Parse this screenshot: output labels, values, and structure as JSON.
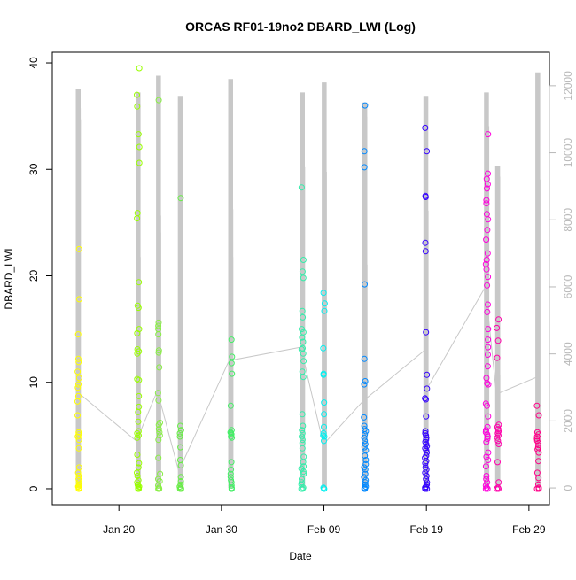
{
  "chart_data": {
    "type": "scatter",
    "title": "ORCAS RF01-19no2 DBARD_LWI (Log)",
    "xlabel": "Date",
    "ylabel": "DBARD_LWI",
    "xlim": [
      "2016-01-13T12:00",
      "2016-03-02T00:00"
    ],
    "ylim": [
      -1.5,
      41
    ],
    "y2lim": [
      -500,
      13000
    ],
    "x_ticks": [
      {
        "value": "2016-01-20",
        "label": "Jan 20"
      },
      {
        "value": "2016-01-30",
        "label": "Jan 30"
      },
      {
        "value": "2016-02-09",
        "label": "Feb 09"
      },
      {
        "value": "2016-02-19",
        "label": "Feb 19"
      },
      {
        "value": "2016-02-29",
        "label": "Feb 29"
      }
    ],
    "y_ticks": [
      0,
      10,
      20,
      30,
      40
    ],
    "y2_ticks": [
      0,
      2000,
      4000,
      6000,
      8000,
      10000,
      12000
    ],
    "y2_color": "#b8b8b8",
    "grid": false,
    "background_series": {
      "color": "#c8c8c8",
      "flights": [
        {
          "start": "2016-01-15T20:00",
          "end": "2016-01-16T06:00",
          "max": 11900
        },
        {
          "start": "2016-01-21T16:00",
          "end": "2016-01-22T02:00",
          "max": 11800
        },
        {
          "start": "2016-01-23T16:00",
          "end": "2016-01-24T02:00",
          "max": 12300
        },
        {
          "start": "2016-01-25T19:00",
          "end": "2016-01-26T05:00",
          "max": 11700
        },
        {
          "start": "2016-01-30T17:00",
          "end": "2016-01-31T03:00",
          "max": 12200
        },
        {
          "start": "2016-02-06T17:00",
          "end": "2016-02-07T03:00",
          "max": 11800
        },
        {
          "start": "2016-02-08T20:00",
          "end": "2016-02-09T06:00",
          "max": 12100
        },
        {
          "start": "2016-02-12T19:00",
          "end": "2016-02-13T05:00",
          "max": 11500
        },
        {
          "start": "2016-02-18T18:00",
          "end": "2016-02-19T04:00",
          "max": 11700
        },
        {
          "start": "2016-02-24T16:00",
          "end": "2016-02-25T02:00",
          "max": 11800
        },
        {
          "start": "2016-02-25T18:00",
          "end": "2016-02-26T04:00",
          "max": 9600
        },
        {
          "start": "2016-02-29T16:00",
          "end": "2016-03-01T02:00",
          "max": 12400
        }
      ],
      "connectors": [
        [
          "2016-01-16T05:00",
          2800
        ],
        [
          "2016-01-21T17:00",
          1400
        ],
        [
          "2016-01-23T18:00",
          2900
        ],
        [
          "2016-01-25T20:00",
          500
        ],
        [
          "2016-01-30T18:00",
          3800
        ],
        [
          "2016-02-06T18:00",
          4200
        ],
        [
          "2016-02-08T21:00",
          1400
        ],
        [
          "2016-02-08T22:00",
          3200
        ],
        [
          "2016-02-08T23:00",
          1300
        ],
        [
          "2016-02-12T20:00",
          2600
        ],
        [
          "2016-02-18T19:00",
          4100
        ],
        [
          "2016-02-19T03:00",
          3000
        ],
        [
          "2016-02-24T18:00",
          6000
        ],
        [
          "2016-02-25T20:00",
          2800
        ],
        [
          "2016-02-29T17:00",
          3300
        ]
      ]
    },
    "series": [
      {
        "color": "#ffff00",
        "t": "2016-01-16T01:00",
        "spread": 0.1,
        "values": [
          22.5,
          17.8,
          14.5,
          12.2,
          11.9,
          11.0,
          10.4,
          9.8,
          9.5,
          8.7,
          8.2,
          6.9,
          5.3,
          5.1,
          4.9,
          4.6,
          3.8,
          2.0,
          1.5,
          1.2,
          0.9,
          0.6,
          0.4,
          0.3,
          0.2,
          0.1,
          0.0,
          0.0
        ]
      },
      {
        "color": "#99ff00",
        "t": "2016-01-21T21:00",
        "spread": 0.12,
        "values": [
          39.5,
          37.0,
          35.9,
          33.3,
          32.1,
          30.6,
          25.9,
          25.4,
          19.4,
          17.2,
          17.0,
          15.0,
          14.6,
          13.1,
          12.9,
          12.7,
          10.3,
          10.2,
          8.7,
          7.7,
          7.2,
          6.3,
          5.4,
          5.2,
          5.0,
          4.8,
          3.2,
          2.4,
          2.0,
          1.5,
          1.2,
          0.8,
          0.6,
          0.4,
          0.3,
          0.2,
          0.1,
          0.0,
          0.0
        ]
      },
      {
        "color": "#88ee44",
        "t": "2016-01-23T22:00",
        "spread": 0.1,
        "values": [
          36.5,
          15.6,
          15.3,
          15.0,
          14.5,
          13.0,
          12.8,
          11.4,
          9.0,
          8.3,
          6.2,
          6.0,
          5.6,
          5.3,
          5.0,
          4.6,
          2.9,
          1.4,
          0.9,
          0.7,
          0.3,
          0.1,
          0.0,
          0.0
        ]
      },
      {
        "color": "#66ee44",
        "t": "2016-01-26T00:00",
        "spread": 0.08,
        "values": [
          27.3,
          5.9,
          5.5,
          5.2,
          4.9,
          3.9,
          2.7,
          2.2,
          1.1,
          0.7,
          0.4,
          0.2,
          0.1,
          0.0,
          0.0
        ]
      },
      {
        "color": "#44ee66",
        "t": "2016-01-30T23:00",
        "spread": 0.08,
        "values": [
          14.0,
          12.4,
          11.8,
          10.8,
          7.8,
          5.5,
          5.3,
          5.2,
          5.1,
          4.9,
          4.8,
          2.5,
          1.8,
          1.4,
          1.1,
          0.8,
          0.6,
          0.3,
          0.1,
          0.0,
          0.0
        ]
      },
      {
        "color": "#33eeaa",
        "t": "2016-02-06T22:00",
        "spread": 0.12,
        "values": [
          28.3,
          21.5,
          20.4,
          19.8,
          16.7,
          16.1,
          15.0,
          14.7,
          14.2,
          13.8,
          13.2,
          13.1,
          12.7,
          12.0,
          11.0,
          10.5,
          7.0,
          5.9,
          5.5,
          5.2,
          4.9,
          4.6,
          4.3,
          3.8,
          3.0,
          2.5,
          2.1,
          1.9,
          1.6,
          1.4,
          0.9,
          0.6,
          0.4,
          0.1,
          0.0,
          0.0
        ]
      },
      {
        "color": "#00f0f0",
        "t": "2016-02-09T00:00",
        "spread": 0.08,
        "values": [
          18.4,
          17.4,
          16.7,
          13.2,
          10.8,
          10.7,
          8.1,
          7.0,
          5.8,
          5.2,
          5.0,
          4.9,
          4.5,
          0.1,
          0.0,
          0.0
        ]
      },
      {
        "color": "#0088ff",
        "t": "2016-02-13T00:00",
        "spread": 0.1,
        "values": [
          36.0,
          31.7,
          30.2,
          19.2,
          12.2,
          10.1,
          9.8,
          6.7,
          5.9,
          5.6,
          5.4,
          5.1,
          4.8,
          4.5,
          4.2,
          3.9,
          3.6,
          3.1,
          2.7,
          2.3,
          2.0,
          1.8,
          1.4,
          1.1,
          0.8,
          0.6,
          0.4,
          0.2,
          0.1,
          0.0,
          0.0
        ]
      },
      {
        "color": "#3300ff",
        "t": "2016-02-18T23:00",
        "spread": 0.1,
        "values": [
          33.9,
          31.7,
          27.5,
          27.4,
          23.1,
          22.3,
          14.7,
          10.7,
          9.4,
          8.5,
          8.4,
          6.8,
          5.4,
          5.2,
          5.0,
          4.8,
          4.6,
          4.4,
          4.2,
          4.0,
          3.8,
          3.6,
          3.4,
          3.1,
          2.9,
          2.6,
          2.4,
          2.0,
          1.8,
          1.5,
          1.2,
          0.9,
          0.6,
          0.4,
          0.2,
          0.1,
          0.0,
          0.0
        ]
      },
      {
        "color": "#ff00dd",
        "t": "2016-02-24T22:00",
        "spread": 0.12,
        "values": [
          33.3,
          29.6,
          29.1,
          28.6,
          28.2,
          27.1,
          26.8,
          25.8,
          25.3,
          24.3,
          23.4,
          22.1,
          21.5,
          21.1,
          20.6,
          19.9,
          19.1,
          17.3,
          16.6,
          15.0,
          14.0,
          13.3,
          12.6,
          11.5,
          10.4,
          9.9,
          9.8,
          8.0,
          7.8,
          6.8,
          5.8,
          5.5,
          5.3,
          5.1,
          4.9,
          4.7,
          4.4,
          3.4,
          3.0,
          2.7,
          2.1,
          1.2,
          0.9,
          0.6,
          0.3,
          0.1,
          0.0,
          0.0
        ]
      },
      {
        "color": "#ff00aa",
        "t": "2016-02-25T23:00",
        "spread": 0.1,
        "values": [
          15.9,
          15.1,
          13.9,
          12.3,
          6.0,
          5.8,
          5.6,
          5.4,
          5.2,
          5.0,
          4.8,
          4.5,
          4.2,
          2.5,
          0.6,
          0.1,
          0.0,
          0.0
        ]
      },
      {
        "color": "#ff0088",
        "t": "2016-02-29T21:00",
        "spread": 0.1,
        "values": [
          7.8,
          6.9,
          5.3,
          5.1,
          4.9,
          4.7,
          4.5,
          4.3,
          4.1,
          3.9,
          3.7,
          3.4,
          2.6,
          1.5,
          1.0,
          0.4,
          0.1,
          0.0,
          0.0
        ]
      }
    ]
  }
}
